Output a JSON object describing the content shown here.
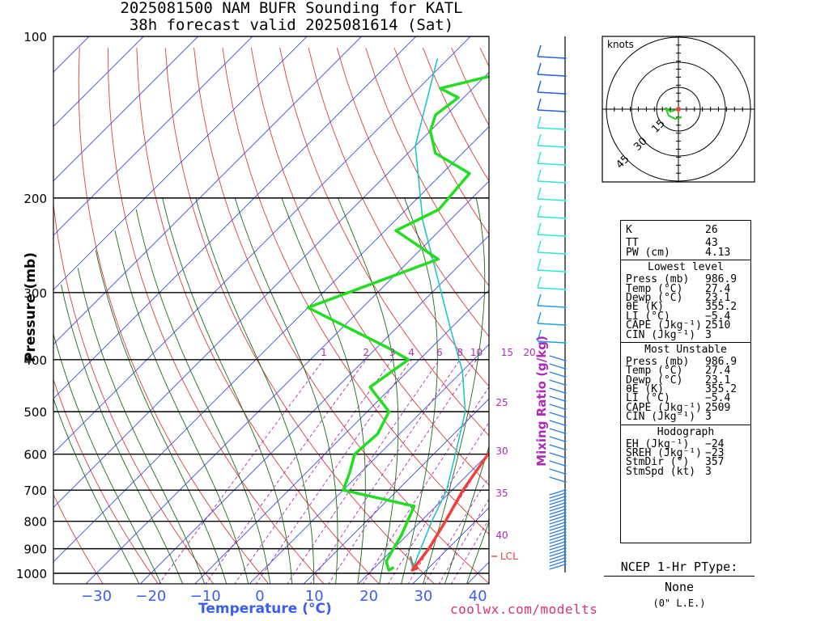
{
  "title_line1": "2025081500 NAM BUFR Sounding for KATL",
  "title_line2": "38h forecast valid 2025081614 (Sat)",
  "footer": "coolwx.com/modelts",
  "chart_data": {
    "type": "line",
    "xlabel": "Temperature (°C)",
    "ylabel": "Pressure (mb)",
    "mixing_ratio_label": "Mixing Ratio (g/kg)",
    "pressure_ticks": [
      "100",
      "200",
      "300",
      "400",
      "500",
      "600",
      "700",
      "800",
      "900",
      "1000"
    ],
    "temperature_ticks": [
      "−30",
      "−20",
      "−10",
      "0",
      "10",
      "20",
      "30",
      "40"
    ],
    "mixing_ratio_values": [
      "1",
      "2",
      "3",
      "4",
      "6",
      "8",
      "10",
      "15",
      "20",
      "25",
      "30",
      "35",
      "40"
    ],
    "lcl_label": "LCL",
    "series": [
      {
        "role": "temperature",
        "color": "#ef4136",
        "x": [
          28,
          27.4,
          26.5,
          24.5,
          22,
          20,
          17,
          14,
          10,
          6,
          2,
          -2.5,
          -6.5,
          -10.5,
          -15.5,
          -19.5,
          -21,
          -20,
          -15,
          -10
        ],
        "y": [
          975,
          986.9,
          900,
          800,
          700,
          600,
          500,
          450,
          400,
          360,
          320,
          280,
          250,
          220,
          190,
          165,
          150,
          130,
          115,
          100
        ]
      },
      {
        "role": "dewpoint",
        "color": "#22dd22",
        "x": [
          23.5,
          23.1,
          21,
          20,
          19,
          16,
          0,
          -2,
          -4.5,
          -4,
          -6,
          -14,
          -12,
          -18,
          -40,
          -25,
          -38,
          -34,
          -35,
          -45,
          -50,
          -52,
          -51,
          -56,
          -45
        ],
        "y": [
          975,
          986.9,
          950,
          900,
          850,
          750,
          700,
          650,
          600,
          550,
          500,
          450,
          400,
          380,
          320,
          260,
          230,
          210,
          180,
          165,
          150,
          140,
          130,
          125,
          115
        ]
      },
      {
        "role": "parcel",
        "color": "#22c5c5",
        "x": [
          27.4,
          25,
          22,
          19,
          14,
          8,
          0,
          -10,
          -22,
          -35,
          -50,
          -62
        ],
        "y": [
          986.9,
          900,
          800,
          700,
          600,
          500,
          420,
          350,
          280,
          220,
          160,
          110
        ]
      }
    ]
  },
  "hodograph": {
    "units": "knots",
    "ring_labels": [
      "15",
      "30",
      "45"
    ]
  },
  "indices": {
    "k": {
      "label": "K",
      "value": "26"
    },
    "tt": {
      "label": "TT",
      "value": "43"
    },
    "pw": {
      "label": "PW (cm)",
      "value": "4.13"
    },
    "lowest_level": {
      "title": "Lowest level",
      "rows": [
        {
          "label": "Press (mb)",
          "value": "986.9"
        },
        {
          "label": "Temp (°C)",
          "value": "27.4"
        },
        {
          "label": "Dewp (°C)",
          "value": "23.1"
        },
        {
          "label": "θE (K)",
          "value": "355.2"
        },
        {
          "label": "LI (°C)",
          "value": "−5.4"
        },
        {
          "label": "CAPE (Jkg⁻¹)",
          "value": "2510"
        },
        {
          "label": "CIN (Jkg⁻¹)",
          "value": "3"
        }
      ]
    },
    "most_unstable": {
      "title": "Most Unstable",
      "rows": [
        {
          "label": "Press (mb)",
          "value": "986.9"
        },
        {
          "label": "Temp (°C)",
          "value": "27.4"
        },
        {
          "label": "Dewp (°C)",
          "value": "23.1"
        },
        {
          "label": "θE (K)",
          "value": "355.2"
        },
        {
          "label": "LI (°C)",
          "value": "−5.4"
        },
        {
          "label": "CAPE (Jkg⁻¹)",
          "value": "2509"
        },
        {
          "label": "CIN (Jkg⁻¹)",
          "value": "3"
        }
      ]
    },
    "hodograph": {
      "title": "Hodograph",
      "rows": [
        {
          "label": "EH (Jkg⁻¹)",
          "value": "−24"
        },
        {
          "label": "SREH (Jkg⁻¹)",
          "value": "−23"
        },
        {
          "label": "StmDir (°)",
          "value": "357"
        },
        {
          "label": "StmSpd (kt)",
          "value": "3"
        }
      ]
    }
  },
  "ptype": {
    "title": "NCEP 1-Hr PType:",
    "value": "None",
    "sub": "(0\" L.E.)"
  }
}
